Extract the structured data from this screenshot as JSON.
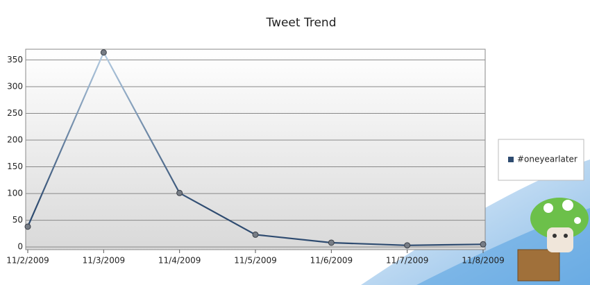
{
  "chart_data": {
    "type": "line",
    "title": "Tweet Trend",
    "categories": [
      "11/2/2009",
      "11/3/2009",
      "11/4/2009",
      "11/5/2009",
      "11/6/2009",
      "11/7/2009",
      "11/8/2009"
    ],
    "series": [
      {
        "name": "#oneyearlater",
        "color": "#2e4b70",
        "values": [
          38,
          364,
          101,
          23,
          8,
          3,
          5
        ]
      }
    ],
    "ylim": [
      -5,
      370
    ],
    "yticks": [
      0,
      50,
      100,
      150,
      200,
      250,
      300,
      350
    ],
    "grid": true,
    "legend": "right"
  }
}
